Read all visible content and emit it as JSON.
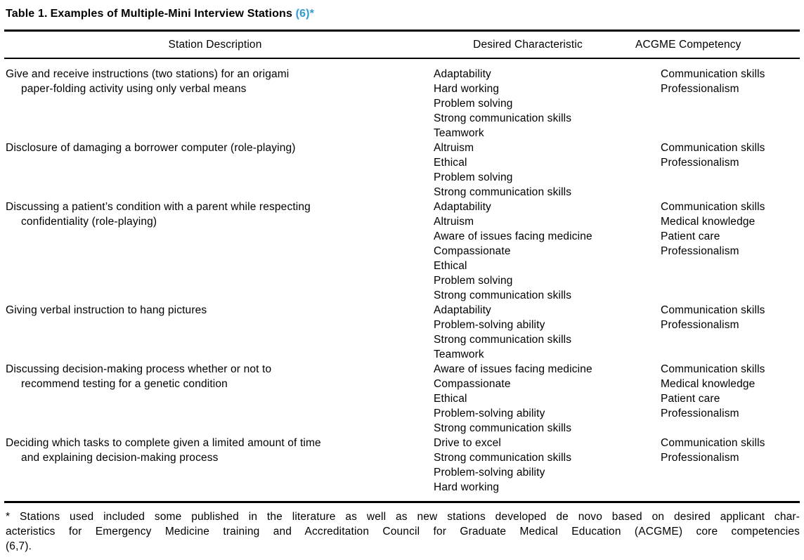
{
  "colors": {
    "citation_blue": "#2E9BD5",
    "text": "#000000",
    "rule": "#000000",
    "background": "#FFFFFF"
  },
  "title": {
    "label": "Table 1.",
    "text": "Examples of Multiple-Mini Interview Stations",
    "citation": "(6)*"
  },
  "table": {
    "columns": [
      "Station Description",
      "Desired Characteristic",
      "ACGME Competency"
    ],
    "rows": [
      {
        "station_lines": [
          "Give and receive instructions (two stations) for an origami",
          "paper-folding activity using only verbal means"
        ],
        "characteristics": [
          "Adaptability",
          "Hard working",
          "Problem solving",
          "Strong communication skills",
          "Teamwork"
        ],
        "competencies": [
          "Communication skills",
          "Professionalism"
        ]
      },
      {
        "station_lines": [
          "Disclosure of damaging a borrower computer (role-playing)"
        ],
        "characteristics": [
          "Altruism",
          "Ethical",
          "Problem solving",
          "Strong communication skills"
        ],
        "competencies": [
          "Communication skills",
          "Professionalism"
        ]
      },
      {
        "station_lines": [
          "Discussing a patient’s condition with a parent while respecting",
          "confidentiality (role-playing)"
        ],
        "characteristics": [
          "Adaptability",
          "Altruism",
          "Aware of issues facing medicine",
          "Compassionate",
          "Ethical",
          "Problem solving",
          "Strong communication skills"
        ],
        "competencies": [
          "Communication skills",
          "Medical knowledge",
          "Patient care",
          "Professionalism"
        ]
      },
      {
        "station_lines": [
          "Giving verbal instruction to hang pictures"
        ],
        "characteristics": [
          "Adaptability",
          "Problem-solving ability",
          "Strong communication skills",
          "Teamwork"
        ],
        "competencies": [
          "Communication skills",
          "Professionalism"
        ]
      },
      {
        "station_lines": [
          "Discussing decision-making process whether or not to",
          "recommend testing for a genetic condition"
        ],
        "characteristics": [
          "Aware of issues facing medicine",
          "Compassionate",
          "Ethical",
          "Problem-solving ability",
          "Strong communication skills"
        ],
        "competencies": [
          "Communication skills",
          "Medical knowledge",
          "Patient care",
          "Professionalism"
        ]
      },
      {
        "station_lines": [
          "Deciding which tasks to complete given a limited amount of time",
          "and explaining decision-making process"
        ],
        "characteristics": [
          "Drive to excel",
          "Strong communication skills",
          "Problem-solving ability",
          "Hard working"
        ],
        "competencies": [
          "Communication skills",
          "Professionalism"
        ]
      }
    ]
  },
  "footnote": {
    "lines": [
      "* Stations used included some published in the literature as well as new stations developed de novo based on desired applicant char-",
      "acteristics for Emergency Medicine training and Accreditation Council for Graduate Medical Education (ACGME) core competencies",
      "(6,7)."
    ]
  }
}
